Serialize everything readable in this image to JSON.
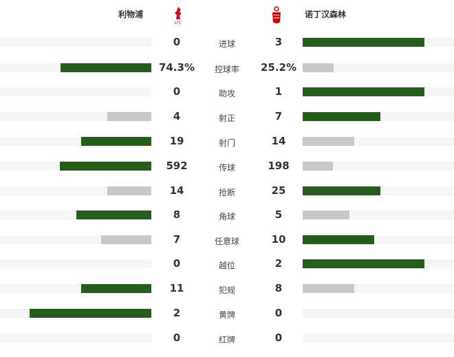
{
  "home": {
    "name": "利物浦",
    "logo_text": "LFC",
    "logo_color": "#c8102e"
  },
  "away": {
    "name": "诺丁汉森林",
    "logo_color": "#dd0000"
  },
  "colors": {
    "leader": "#245e1a",
    "trailer": "#c8c8c8",
    "track": "#f5f5f5"
  },
  "stats": [
    {
      "label": "进球",
      "home": "0",
      "away": "3",
      "h": 0,
      "a": 3
    },
    {
      "label": "控球率",
      "home": "74.3%",
      "away": "25.2%",
      "h": 74.3,
      "a": 25.2
    },
    {
      "label": "助攻",
      "home": "0",
      "away": "1",
      "h": 0,
      "a": 1
    },
    {
      "label": "射正",
      "home": "4",
      "away": "7",
      "h": 4,
      "a": 7
    },
    {
      "label": "射门",
      "home": "19",
      "away": "14",
      "h": 19,
      "a": 14
    },
    {
      "label": "传球",
      "home": "592",
      "away": "198",
      "h": 592,
      "a": 198
    },
    {
      "label": "抢断",
      "home": "14",
      "away": "25",
      "h": 14,
      "a": 25
    },
    {
      "label": "角球",
      "home": "8",
      "away": "5",
      "h": 8,
      "a": 5
    },
    {
      "label": "任意球",
      "home": "7",
      "away": "10",
      "h": 7,
      "a": 10
    },
    {
      "label": "越位",
      "home": "0",
      "away": "2",
      "h": 0,
      "a": 2
    },
    {
      "label": "犯规",
      "home": "11",
      "away": "8",
      "h": 11,
      "a": 8
    },
    {
      "label": "黄牌",
      "home": "2",
      "away": "0",
      "h": 2,
      "a": 0
    },
    {
      "label": "红牌",
      "home": "0",
      "away": "0",
      "h": 0,
      "a": 0
    }
  ]
}
